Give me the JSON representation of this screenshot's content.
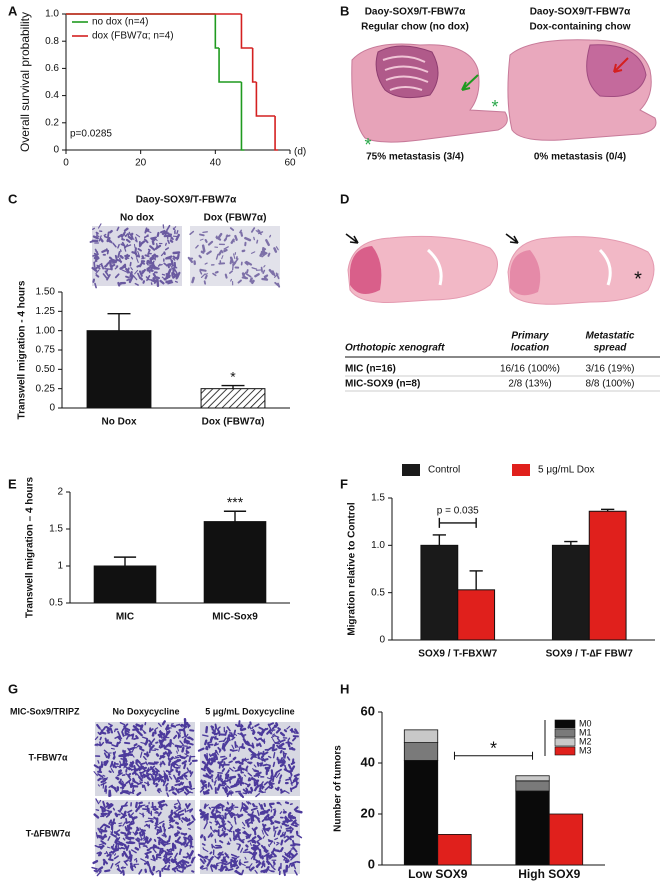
{
  "chart_data": [
    {
      "type": "line",
      "panel": "A",
      "ylabel": "Overall survival probability",
      "xunit": "(d)",
      "annotation": "p=0.0285",
      "xlim": [
        0,
        60
      ],
      "xticks": [
        0,
        20,
        40,
        60
      ],
      "ylim": [
        0,
        1
      ],
      "yticks": [
        0,
        0.2,
        0.4,
        0.6,
        0.8,
        {
          "value": 1,
          "label": "1.0"
        }
      ],
      "legend": "top-left",
      "series": [
        {
          "name": "no dox (n=4)",
          "color": "#1f9a1f",
          "x": [
            0,
            40,
            41,
            47
          ],
          "values": [
            1,
            0.75,
            0.5,
            0
          ]
        },
        {
          "name": "dox (FBW7α; n=4)",
          "color": "#d42020",
          "x": [
            0,
            47,
            50,
            51,
            56
          ],
          "values": [
            1,
            0.75,
            0.5,
            0.25,
            0
          ]
        }
      ]
    },
    {
      "type": "bar",
      "panel": "C",
      "title": "Daoy-SOX9/T-FBW7α",
      "image_labels": [
        "No dox",
        "Dox (FBW7α)"
      ],
      "ylabel": "Transwell migration - 4 hours",
      "annotation": "*",
      "categories": [
        "No Dox",
        "Dox (FBW7α)"
      ],
      "hatch": [
        false,
        true
      ],
      "ylim": [
        0,
        1.5
      ],
      "yticks": [
        0,
        0.25,
        {
          "value": 0.5,
          "label": "0.50"
        },
        0.75,
        {
          "value": 1,
          "label": "1.00"
        },
        1.25,
        {
          "value": 1.5,
          "label": "1.50"
        }
      ],
      "series": [
        {
          "color": "#111111",
          "values": [
            1.0,
            0.25
          ],
          "errors": [
            0.22,
            0.04
          ]
        }
      ]
    },
    {
      "type": "bar",
      "panel": "E",
      "ylabel": "Transwell migration – 4 hours",
      "annotation": "***",
      "categories": [
        "MIC",
        "MIC-Sox9"
      ],
      "ylim": [
        0.5,
        2
      ],
      "yticks": [
        0.5,
        1,
        1.5,
        2
      ],
      "series": [
        {
          "color": "#111111",
          "values": [
            1.0,
            1.6
          ],
          "errors": [
            0.12,
            0.14
          ]
        }
      ]
    },
    {
      "type": "bar",
      "panel": "F",
      "ylabel": "Migration relative to Control",
      "annotation": "p = 0.035",
      "legend": "top",
      "categories": [
        "SOX9 / T-FBXW7",
        "SOX9 / T-∆F FBW7"
      ],
      "ylim": [
        0,
        1.5
      ],
      "yticks": [
        0,
        0.5,
        {
          "value": 1,
          "label": "1.0"
        },
        1.5
      ],
      "series": [
        {
          "name": "Control",
          "color": "#1a1a1a",
          "values": [
            1.0,
            1.0
          ],
          "errors": [
            0.11,
            0.04
          ]
        },
        {
          "name": "5 μg/mL Dox",
          "color": "#e0201c",
          "values": [
            0.53,
            1.36
          ],
          "errors": [
            0.2,
            0.02
          ]
        }
      ]
    },
    {
      "type": "stacked_bar",
      "panel": "H",
      "ylabel": "Number of tumors",
      "annotation": "*",
      "legend": "top-right",
      "categories": [
        "Low SOX9",
        "High SOX9"
      ],
      "ylim": [
        0,
        60
      ],
      "yticks": [
        0,
        20,
        40,
        60
      ],
      "series": [
        {
          "name": "M0",
          "color": "#0a0a0a",
          "values": [
            41,
            29
          ]
        },
        {
          "name": "M1",
          "color": "#7a7a7a",
          "values": [
            7,
            4
          ]
        },
        {
          "name": "M2",
          "color": "#c8c8c8",
          "values": [
            5,
            2
          ]
        },
        {
          "name": "M3",
          "color": "#e0201c",
          "values": [
            12,
            20
          ]
        }
      ]
    }
  ],
  "panel_b": {
    "label": "B",
    "left": {
      "title": "Daoy-SOX9/T-FBW7α",
      "subtitle": "Regular chow (no dox)",
      "caption": "75% metastasis (3/4)"
    },
    "right": {
      "title": "Daoy-SOX9/T-FBW7α",
      "subtitle": "Dox-containing chow",
      "caption": "0% metastasis (0/4)"
    },
    "marker": "*"
  },
  "panel_d": {
    "label": "D",
    "marker": "*",
    "table": {
      "header": [
        [
          "Orthotopic xenograft"
        ],
        [
          "Primary",
          "location"
        ],
        [
          "Metastatic",
          "spread"
        ]
      ],
      "rows": [
        [
          "MIC (n=16)",
          "16/16 (100%)",
          "3/16 (19%)"
        ],
        [
          "MIC-SOX9 (n=8)",
          "2/8 (13%)",
          "8/8 (100%)"
        ]
      ]
    }
  },
  "panel_g": {
    "label": "G",
    "title": "MIC-Sox9/TRIPZ",
    "columns": [
      "No Doxycycline",
      "5 μg/mL Doxycycline"
    ],
    "rows": [
      "T-FBW7α",
      "T-∆FBW7α"
    ]
  }
}
